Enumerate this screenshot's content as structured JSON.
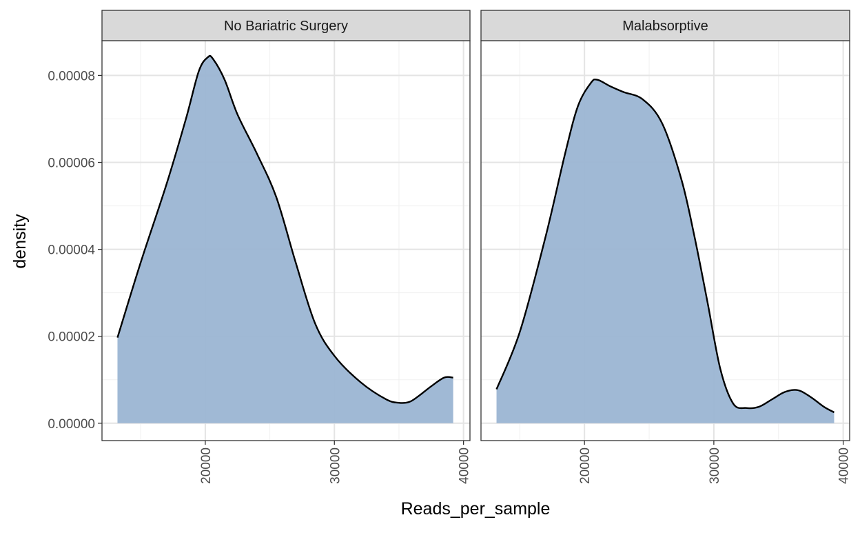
{
  "chart_data": {
    "type": "area",
    "xlabel": "Reads_per_sample",
    "ylabel": "density",
    "xlim": [
      12000,
      40500
    ],
    "ylim": [
      -4e-06,
      8.8e-05
    ],
    "x_ticks": [
      20000,
      30000,
      40000
    ],
    "x_tick_labels": [
      "20000",
      "30000",
      "40000"
    ],
    "y_ticks": [
      0,
      2e-05,
      4e-05,
      6e-05,
      8e-05
    ],
    "y_tick_labels": [
      "0.00000",
      "0.00002",
      "0.00004",
      "0.00006",
      "0.00008"
    ],
    "grid": true,
    "fill_color": "#9bb5d3",
    "line_color": "#000000",
    "strip_color": "#d9d9d9",
    "panels": [
      {
        "title": "No Bariatric Surgery",
        "x": [
          13200,
          15000,
          17000,
          18500,
          19500,
          20200,
          20600,
          21500,
          22500,
          24000,
          25500,
          27000,
          28500,
          30000,
          32000,
          34000,
          35000,
          35800,
          36500,
          37500,
          38500,
          39200
        ],
        "y": [
          1.97e-05,
          3.7e-05,
          5.5e-05,
          7e-05,
          8.1e-05,
          8.42e-05,
          8.38e-05,
          7.9e-05,
          7.1e-05,
          6.2e-05,
          5.2e-05,
          3.7e-05,
          2.3e-05,
          1.55e-05,
          9.5e-06,
          5.5e-06,
          4.7e-06,
          4.9e-06,
          6.2e-06,
          8.5e-06,
          1.05e-05,
          1.05e-05
        ]
      },
      {
        "title": "Malabsorptive",
        "x": [
          13200,
          15000,
          17000,
          18500,
          19500,
          20500,
          21000,
          22000,
          23000,
          24500,
          26000,
          27500,
          28500,
          29500,
          30500,
          31500,
          32500,
          33500,
          34500,
          35500,
          36500,
          37500,
          38500,
          39300
        ],
        "y": [
          7.8e-06,
          2.1e-05,
          4.3e-05,
          6.2e-05,
          7.3e-05,
          7.83e-05,
          7.9e-05,
          7.75e-05,
          7.62e-05,
          7.45e-05,
          6.9e-05,
          5.6e-05,
          4.3e-05,
          2.8e-05,
          1.25e-05,
          4.5e-06,
          3.5e-06,
          3.8e-06,
          5.5e-06,
          7.2e-06,
          7.6e-06,
          6e-06,
          3.8e-06,
          2.5e-06
        ]
      }
    ]
  }
}
